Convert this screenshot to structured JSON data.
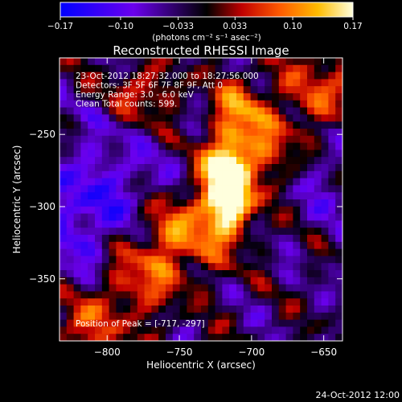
{
  "chart_data": {
    "type": "heatmap",
    "title": "Reconstructed RHESSI Image",
    "xlabel": "Heliocentric X (arcsec)",
    "ylabel": "Heliocentric Y (arcsec)",
    "xlim": [
      -833,
      -637
    ],
    "ylim": [
      -393,
      -197
    ],
    "x_ticks": [
      -800,
      -750,
      -700,
      -650
    ],
    "x_tick_labels": [
      "−800",
      "−750",
      "−700",
      "−650"
    ],
    "y_ticks": [
      -250,
      -300,
      -350
    ],
    "y_tick_labels": [
      "−250",
      "−300",
      "−350"
    ],
    "colorbar": {
      "range": [
        -0.17,
        0.17
      ],
      "ticks": [
        -0.17,
        -0.1,
        -0.033,
        0.033,
        0.1,
        0.17
      ],
      "tick_labels": [
        "−0.17",
        "−0.10",
        "−0.033",
        "0.033",
        "0.10",
        "0.17"
      ],
      "units_label": "(photons cm⁻² s⁻¹ asec⁻²)",
      "colormap": [
        "#0000ff",
        "#6a00ee",
        "#000000",
        "#c00000",
        "#ff5a00",
        "#ffbb00",
        "#ffffdd"
      ]
    },
    "annotations": [
      "23-Oct-2012 18:27:32.000 to 18:27:56.000",
      "Detectors: 3F 5F 6F 7F 8F 9F, Att 0",
      "Energy Range: 3.0 - 6.0 keV",
      "Clean    Total counts: 599."
    ],
    "peak_label": "Position of Peak = [-717, -297]",
    "peak": [
      -717,
      -297
    ],
    "grid": false
  },
  "footer": {
    "timestamp": "24-Oct-2012 12:00"
  }
}
